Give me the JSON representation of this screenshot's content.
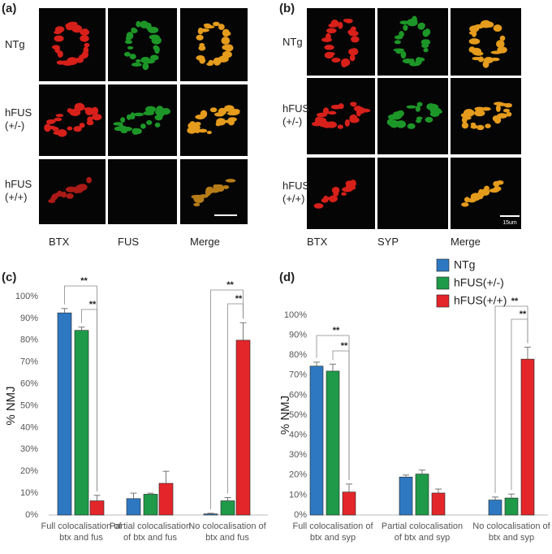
{
  "panels": [
    {
      "label": "(a)",
      "rows": [
        "NTg",
        "hFUS\n(+/-)",
        "hFUS\n(+/+)"
      ],
      "columns": [
        "BTX",
        "FUS",
        "Merge"
      ]
    },
    {
      "label": "(b)",
      "rows": [
        "NTg",
        "hFUS\n(+/-)",
        "hFUS\n(+/+)"
      ],
      "columns": [
        "BTX",
        "SYP",
        "Merge"
      ],
      "scale_bar": "15um"
    }
  ],
  "chart_data": [
    {
      "type": "bar",
      "label": "(c)",
      "ylabel": "% NMJ",
      "categories": [
        "Full colocalisation of btx and fus",
        "Partial colocalisation of btx and fus",
        "No colocalisation of btx and fus"
      ],
      "series": [
        {
          "name": "NTg",
          "color": "#2e78c2",
          "values": [
            92.5,
            7.5,
            0.5
          ],
          "errors": [
            2,
            2.5,
            0.3
          ]
        },
        {
          "name": "hFUS(+/-)",
          "color": "#1f9a48",
          "values": [
            84.5,
            9.5,
            6.5
          ],
          "errors": [
            1.5,
            0.5,
            1.5
          ]
        },
        {
          "name": "hFUS(+/+)",
          "color": "#e3262a",
          "values": [
            6.5,
            14.5,
            80
          ],
          "errors": [
            2.5,
            5.5,
            8
          ]
        }
      ],
      "ylim": [
        0,
        100
      ],
      "yticks": [
        {
          "value": 0,
          "label": "0%"
        },
        {
          "value": 10,
          "label": "10%"
        },
        {
          "value": 20,
          "label": "20%"
        },
        {
          "value": 30,
          "label": "30%"
        },
        {
          "value": 40,
          "label": "40%"
        },
        {
          "value": 50,
          "label": "50%"
        },
        {
          "value": 60,
          "label": "60%"
        },
        {
          "value": 70,
          "label": "70%"
        },
        {
          "value": 80,
          "label": "80%"
        },
        {
          "value": 90,
          "label": "90%"
        },
        {
          "value": 100,
          "label": "100%"
        }
      ],
      "grid": false,
      "legend": false,
      "annotations": [
        "**",
        "**",
        "**",
        "**"
      ]
    },
    {
      "type": "bar",
      "label": "(d)",
      "ylabel": "% NMJ",
      "categories": [
        "Full colocalisation of btx and syp",
        "Partial colocalisation of btx and syp",
        "No colocalisation of btx and syp"
      ],
      "series": [
        {
          "name": "NTg",
          "color": "#2e78c2",
          "values": [
            74.5,
            19,
            7.5
          ],
          "errors": [
            2,
            1,
            1.5
          ]
        },
        {
          "name": "hFUS(+/-)",
          "color": "#1f9a48",
          "values": [
            72,
            20.5,
            8.5
          ],
          "errors": [
            3.5,
            2,
            2
          ]
        },
        {
          "name": "hFUS(+/+)",
          "color": "#e3262a",
          "values": [
            11.5,
            11,
            78
          ],
          "errors": [
            4,
            2,
            6
          ]
        }
      ],
      "ylim": [
        0,
        100
      ],
      "yticks": [
        {
          "value": 0,
          "label": "0%"
        },
        {
          "value": 10,
          "label": "10%"
        },
        {
          "value": 20,
          "label": "20%"
        },
        {
          "value": 30,
          "label": "30%"
        },
        {
          "value": 40,
          "label": "40%"
        },
        {
          "value": 50,
          "label": "50%"
        },
        {
          "value": 60,
          "label": "60%"
        },
        {
          "value": 70,
          "label": "70%"
        },
        {
          "value": 80,
          "label": "80%"
        },
        {
          "value": 90,
          "label": "90%"
        },
        {
          "value": 100,
          "label": "100%"
        }
      ],
      "grid": false,
      "legend": true,
      "annotations": [
        "**",
        "**",
        "**",
        "**"
      ]
    }
  ]
}
